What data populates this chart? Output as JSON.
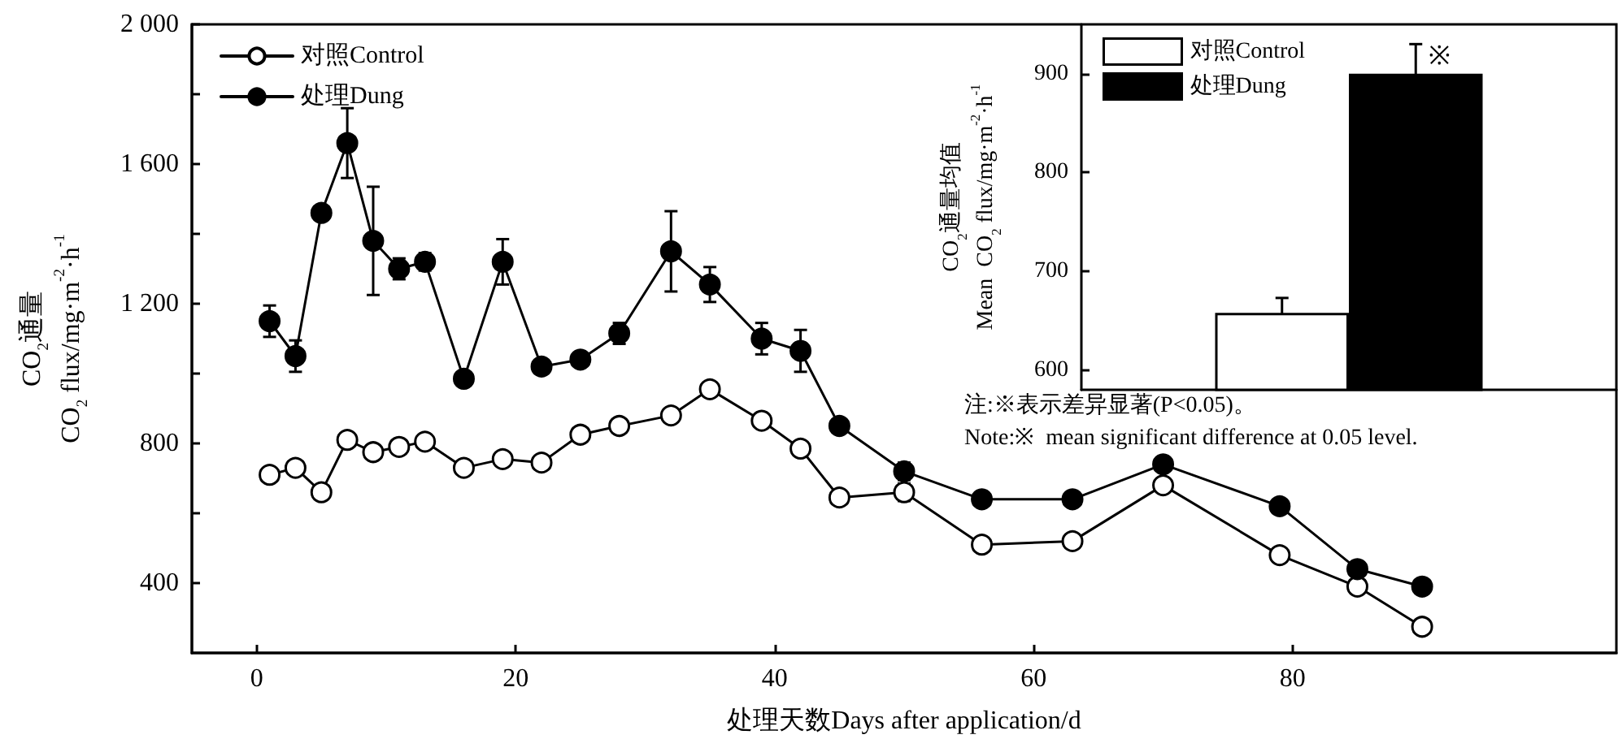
{
  "chart_data": [
    {
      "type": "line",
      "xlabel": "处理天数Days after application/d",
      "ylabel": "CO$_{2}$通量\nCO$_{2}$ flux/mg·m$^{-2}$·h$^{-1}$",
      "x": [
        1,
        3,
        5,
        7,
        9,
        11,
        13,
        16,
        19,
        22,
        25,
        28,
        32,
        35,
        39,
        42,
        45,
        50,
        56,
        63,
        70,
        79,
        85,
        90
      ],
      "series": [
        {
          "name": "对照Control",
          "color": "#ffffff",
          "values": [
            710,
            730,
            660,
            810,
            775,
            790,
            805,
            730,
            755,
            745,
            825,
            850,
            880,
            955,
            865,
            785,
            645,
            660,
            510,
            520,
            680,
            480,
            390,
            275
          ],
          "errors": [
            null,
            null,
            null,
            null,
            null,
            null,
            null,
            null,
            null,
            null,
            null,
            null,
            null,
            null,
            null,
            null,
            null,
            25,
            null,
            null,
            null,
            null,
            null,
            null
          ]
        },
        {
          "name": "处理Dung",
          "color": "#000000",
          "values": [
            1150,
            1050,
            1460,
            1660,
            1380,
            1300,
            1320,
            985,
            1320,
            1020,
            1040,
            1115,
            1350,
            1255,
            1100,
            1065,
            850,
            720,
            640,
            640,
            740,
            620,
            440,
            390
          ],
          "errors": [
            45,
            45,
            null,
            100,
            155,
            30,
            25,
            null,
            65,
            null,
            null,
            30,
            115,
            50,
            45,
            60,
            null,
            25,
            null,
            null,
            20,
            null,
            null,
            null
          ]
        }
      ],
      "xlim": [
        -5,
        105
      ],
      "xticks": [
        0,
        20,
        40,
        60,
        80
      ],
      "ylim": [
        200,
        2000
      ],
      "yticks": [
        400,
        {
          "value": 600,
          "label": null
        },
        800,
        {
          "value": 1000,
          "label": null
        },
        {
          "value": 1200,
          "label": "1 200"
        },
        {
          "value": 1400,
          "label": null
        },
        {
          "value": 1600,
          "label": "1 600"
        },
        {
          "value": 1800,
          "label": null
        },
        {
          "value": 2000,
          "label": "2 000"
        }
      ],
      "grid": false,
      "legend": "top left",
      "marker": "circle",
      "line_style": "solid"
    },
    {
      "type": "bar",
      "ylabel": "CO$_{2}$通量均值\nMean  CO$_{2}$ flux/mg·m$^{-2}$·h$^{-1}$",
      "categories": [
        null
      ],
      "series": [
        {
          "name": "对照Control",
          "color": "#ffffff",
          "values": [
            658
          ],
          "errors": [
            15
          ]
        },
        {
          "name": "处理Dung",
          "color": "#000000",
          "values": [
            900
          ],
          "errors": [
            30
          ]
        }
      ],
      "ylim": [
        580,
        950
      ],
      "yticks": [
        600,
        700,
        800,
        900
      ],
      "grid": false,
      "legend": "top left",
      "annotations": [
        "※",
        "注:※表示差异显著(P<0.05)。",
        "Note:※  mean significant difference at 0.05 level."
      ]
    }
  ]
}
